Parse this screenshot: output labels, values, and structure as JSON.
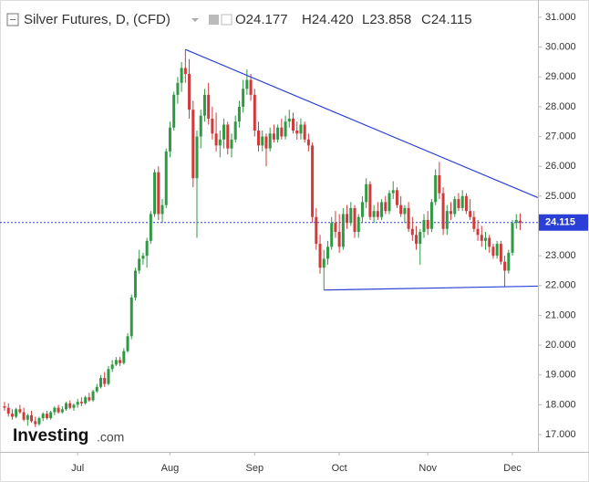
{
  "chart_data": {
    "type": "candlestick",
    "title": "Silver Futures, D, (CFD)",
    "ohlc_labels": [
      "O24.177",
      "H24.420",
      "L23.858",
      "C24.115"
    ],
    "watermark_brand": "Investing",
    "watermark_suffix": ".com",
    "up_color": "#2e9a44",
    "down_color": "#d13a3a",
    "line_color": "#2a3fd6",
    "price_line": 24.115,
    "ylim": [
      16.42,
      31.58
    ],
    "yticks": [
      {
        "value": 17,
        "label": "17.000"
      },
      {
        "value": 18,
        "label": "18.000"
      },
      {
        "value": 19,
        "label": "19.000"
      },
      {
        "value": 20,
        "label": "20.000"
      },
      {
        "value": 21,
        "label": "21.000"
      },
      {
        "value": 22,
        "label": "22.000"
      },
      {
        "value": 23,
        "label": "23.000"
      },
      {
        "value": 24,
        "label": "24.000"
      },
      {
        "value": 25,
        "label": "25.000"
      },
      {
        "value": 26,
        "label": "26.000"
      },
      {
        "value": 27,
        "label": "27.000"
      },
      {
        "value": 28,
        "label": "28.000"
      },
      {
        "value": 29,
        "label": "29.000"
      },
      {
        "value": 30,
        "label": "30.000"
      },
      {
        "value": 31,
        "label": "31.000"
      }
    ],
    "categories": [
      null,
      null,
      null,
      null,
      null,
      null,
      null,
      null,
      null,
      null,
      null,
      null,
      null,
      null,
      null,
      null,
      null,
      null,
      null,
      "Jul",
      null,
      null,
      null,
      null,
      null,
      null,
      null,
      null,
      null,
      null,
      null,
      null,
      null,
      null,
      null,
      null,
      null,
      null,
      null,
      null,
      null,
      null,
      null,
      "Aug",
      null,
      null,
      null,
      null,
      null,
      null,
      null,
      null,
      null,
      null,
      null,
      null,
      null,
      null,
      null,
      null,
      null,
      null,
      null,
      null,
      null,
      "Sep",
      null,
      null,
      null,
      null,
      null,
      null,
      null,
      null,
      null,
      null,
      null,
      null,
      null,
      null,
      null,
      null,
      null,
      null,
      null,
      null,
      null,
      "Oct",
      null,
      null,
      null,
      null,
      null,
      null,
      null,
      null,
      null,
      null,
      null,
      null,
      null,
      null,
      null,
      null,
      null,
      null,
      null,
      null,
      null,
      null,
      "Nov",
      null,
      null,
      null,
      null,
      null,
      null,
      null,
      null,
      null,
      null,
      null,
      null,
      null,
      null,
      null,
      null,
      null,
      null,
      null,
      null,
      null,
      "Dec",
      null,
      null
    ],
    "values": [
      [
        17.95,
        18.1,
        17.8,
        17.9
      ],
      [
        17.9,
        18.05,
        17.6,
        17.7
      ],
      [
        17.7,
        17.85,
        17.5,
        17.6
      ],
      [
        17.6,
        17.9,
        17.55,
        17.85
      ],
      [
        17.85,
        18.0,
        17.7,
        17.75
      ],
      [
        17.75,
        17.9,
        17.45,
        17.5
      ],
      [
        17.5,
        17.7,
        17.3,
        17.65
      ],
      [
        17.65,
        17.8,
        17.4,
        17.45
      ],
      [
        17.45,
        17.6,
        17.25,
        17.35
      ],
      [
        17.35,
        17.6,
        17.3,
        17.55
      ],
      [
        17.55,
        17.75,
        17.45,
        17.7
      ],
      [
        17.7,
        17.8,
        17.5,
        17.55
      ],
      [
        17.55,
        17.8,
        17.5,
        17.75
      ],
      [
        17.75,
        17.95,
        17.65,
        17.9
      ],
      [
        17.9,
        18.0,
        17.7,
        17.75
      ],
      [
        17.75,
        17.95,
        17.7,
        17.85
      ],
      [
        17.85,
        18.1,
        17.8,
        18.05
      ],
      [
        18.05,
        18.15,
        17.85,
        17.9
      ],
      [
        17.9,
        18.05,
        17.8,
        18.0
      ],
      [
        18.0,
        18.2,
        17.9,
        18.1
      ],
      [
        18.1,
        18.25,
        17.95,
        18.05
      ],
      [
        18.05,
        18.3,
        18.0,
        18.25
      ],
      [
        18.25,
        18.4,
        18.1,
        18.15
      ],
      [
        18.15,
        18.5,
        18.1,
        18.45
      ],
      [
        18.45,
        18.7,
        18.4,
        18.6
      ],
      [
        18.6,
        19.0,
        18.55,
        18.9
      ],
      [
        18.9,
        19.1,
        18.6,
        18.7
      ],
      [
        18.7,
        19.3,
        18.65,
        19.2
      ],
      [
        19.2,
        19.5,
        19.1,
        19.35
      ],
      [
        19.35,
        19.6,
        19.3,
        19.5
      ],
      [
        19.5,
        19.6,
        19.3,
        19.4
      ],
      [
        19.4,
        19.9,
        19.35,
        19.8
      ],
      [
        19.8,
        20.4,
        19.75,
        20.3
      ],
      [
        20.3,
        21.7,
        20.2,
        21.6
      ],
      [
        21.6,
        22.6,
        21.5,
        22.5
      ],
      [
        22.5,
        23.2,
        22.4,
        22.9
      ],
      [
        22.9,
        23.1,
        22.7,
        23.0
      ],
      [
        23.0,
        23.6,
        22.6,
        23.5
      ],
      [
        23.5,
        24.5,
        23.4,
        24.4
      ],
      [
        24.4,
        25.9,
        24.3,
        25.8
      ],
      [
        25.8,
        26.0,
        24.2,
        24.4
      ],
      [
        24.4,
        24.9,
        24.1,
        24.7
      ],
      [
        24.7,
        26.6,
        24.6,
        26.5
      ],
      [
        26.5,
        27.5,
        26.3,
        27.3
      ],
      [
        27.3,
        28.5,
        27.2,
        28.4
      ],
      [
        28.4,
        29.0,
        28.1,
        28.8
      ],
      [
        28.8,
        29.5,
        28.5,
        29.3
      ],
      [
        29.3,
        29.92,
        28.8,
        29.1
      ],
      [
        29.1,
        29.6,
        27.6,
        27.9
      ],
      [
        27.9,
        28.2,
        25.3,
        25.6
      ],
      [
        25.6,
        27.2,
        23.6,
        27.0
      ],
      [
        27.0,
        27.9,
        26.6,
        27.7
      ],
      [
        27.7,
        28.6,
        27.5,
        28.4
      ],
      [
        28.4,
        28.8,
        27.4,
        27.6
      ],
      [
        27.6,
        28.0,
        26.9,
        27.1
      ],
      [
        27.1,
        27.8,
        26.5,
        26.7
      ],
      [
        26.7,
        27.2,
        26.3,
        26.9
      ],
      [
        26.9,
        27.6,
        26.6,
        27.4
      ],
      [
        27.4,
        27.5,
        26.4,
        26.6
      ],
      [
        26.6,
        27.1,
        26.3,
        26.9
      ],
      [
        26.9,
        27.7,
        26.8,
        27.5
      ],
      [
        27.5,
        28.2,
        27.3,
        28.0
      ],
      [
        28.0,
        28.9,
        27.8,
        28.6
      ],
      [
        28.6,
        29.25,
        28.4,
        28.9
      ],
      [
        28.9,
        29.1,
        28.2,
        28.4
      ],
      [
        28.4,
        28.6,
        27.0,
        27.2
      ],
      [
        27.2,
        27.5,
        26.5,
        26.7
      ],
      [
        26.7,
        27.2,
        26.5,
        27.0
      ],
      [
        27.0,
        27.1,
        26.0,
        26.6
      ],
      [
        26.6,
        27.3,
        26.5,
        27.1
      ],
      [
        27.1,
        27.4,
        26.8,
        26.9
      ],
      [
        26.9,
        27.4,
        26.8,
        27.3
      ],
      [
        27.3,
        27.6,
        26.9,
        27.0
      ],
      [
        27.0,
        27.7,
        26.9,
        27.5
      ],
      [
        27.5,
        27.9,
        27.3,
        27.6
      ],
      [
        27.6,
        27.8,
        27.1,
        27.2
      ],
      [
        27.2,
        27.5,
        26.9,
        27.1
      ],
      [
        27.1,
        27.6,
        26.9,
        27.4
      ],
      [
        27.4,
        27.5,
        26.8,
        26.9
      ],
      [
        26.9,
        27.1,
        26.5,
        26.7
      ],
      [
        26.7,
        26.8,
        24.1,
        24.3
      ],
      [
        24.3,
        24.6,
        23.2,
        23.4
      ],
      [
        23.4,
        23.7,
        22.4,
        22.6
      ],
      [
        22.6,
        23.2,
        21.85,
        22.9
      ],
      [
        22.9,
        23.5,
        22.7,
        23.3
      ],
      [
        23.3,
        24.3,
        23.2,
        24.1
      ],
      [
        24.1,
        24.5,
        23.6,
        23.8
      ],
      [
        23.8,
        24.4,
        23.1,
        23.3
      ],
      [
        23.3,
        24.6,
        23.2,
        24.4
      ],
      [
        24.4,
        24.7,
        23.9,
        24.1
      ],
      [
        24.1,
        24.8,
        24.0,
        24.6
      ],
      [
        24.6,
        24.7,
        23.6,
        23.8
      ],
      [
        23.8,
        24.4,
        23.6,
        24.3
      ],
      [
        24.3,
        25.0,
        24.1,
        24.8
      ],
      [
        24.8,
        25.6,
        24.6,
        25.4
      ],
      [
        25.4,
        25.5,
        24.2,
        24.3
      ],
      [
        24.3,
        24.7,
        24.1,
        24.5
      ],
      [
        24.5,
        24.8,
        24.2,
        24.3
      ],
      [
        24.3,
        24.9,
        24.2,
        24.8
      ],
      [
        24.8,
        25.0,
        24.4,
        24.5
      ],
      [
        24.5,
        25.2,
        24.4,
        25.1
      ],
      [
        25.1,
        25.5,
        24.9,
        25.2
      ],
      [
        25.2,
        25.3,
        24.6,
        24.7
      ],
      [
        24.7,
        25.0,
        24.3,
        24.4
      ],
      [
        24.4,
        24.7,
        24.1,
        24.6
      ],
      [
        24.6,
        24.8,
        23.8,
        23.9
      ],
      [
        23.9,
        24.3,
        23.5,
        23.7
      ],
      [
        23.7,
        24.0,
        23.2,
        23.4
      ],
      [
        23.4,
        23.9,
        22.7,
        23.8
      ],
      [
        23.8,
        24.4,
        23.6,
        24.2
      ],
      [
        24.2,
        24.5,
        23.7,
        23.9
      ],
      [
        23.9,
        24.9,
        23.8,
        24.8
      ],
      [
        24.8,
        25.9,
        24.7,
        25.7
      ],
      [
        25.7,
        26.15,
        24.9,
        25.1
      ],
      [
        25.1,
        25.3,
        23.7,
        23.9
      ],
      [
        23.9,
        24.7,
        23.7,
        24.5
      ],
      [
        24.5,
        24.8,
        24.2,
        24.4
      ],
      [
        24.4,
        25.0,
        24.3,
        24.9
      ],
      [
        24.9,
        25.1,
        24.5,
        24.6
      ],
      [
        24.6,
        25.2,
        24.5,
        25.0
      ],
      [
        25.0,
        25.1,
        24.4,
        24.5
      ],
      [
        24.5,
        24.9,
        24.2,
        24.3
      ],
      [
        24.3,
        24.5,
        23.8,
        23.9
      ],
      [
        23.9,
        24.2,
        23.5,
        23.7
      ],
      [
        23.7,
        24.0,
        23.3,
        23.5
      ],
      [
        23.5,
        23.8,
        23.2,
        23.6
      ],
      [
        23.6,
        23.7,
        23.1,
        23.3
      ],
      [
        23.3,
        23.4,
        22.9,
        23.0
      ],
      [
        23.0,
        23.5,
        22.9,
        23.4
      ],
      [
        23.4,
        23.5,
        22.7,
        22.8
      ],
      [
        22.8,
        23.0,
        21.95,
        22.5
      ],
      [
        22.5,
        23.2,
        22.4,
        23.1
      ],
      [
        23.1,
        24.2,
        23.0,
        24.1
      ],
      [
        24.1,
        24.4,
        23.9,
        24.2
      ],
      [
        24.177,
        24.42,
        23.858,
        24.115
      ]
    ],
    "trendlines": [
      {
        "x": [
          47,
          138.6
        ],
        "y": [
          29.92,
          24.95
        ]
      },
      {
        "x": [
          83,
          138.6
        ],
        "y": [
          21.85,
          21.98
        ]
      }
    ]
  }
}
